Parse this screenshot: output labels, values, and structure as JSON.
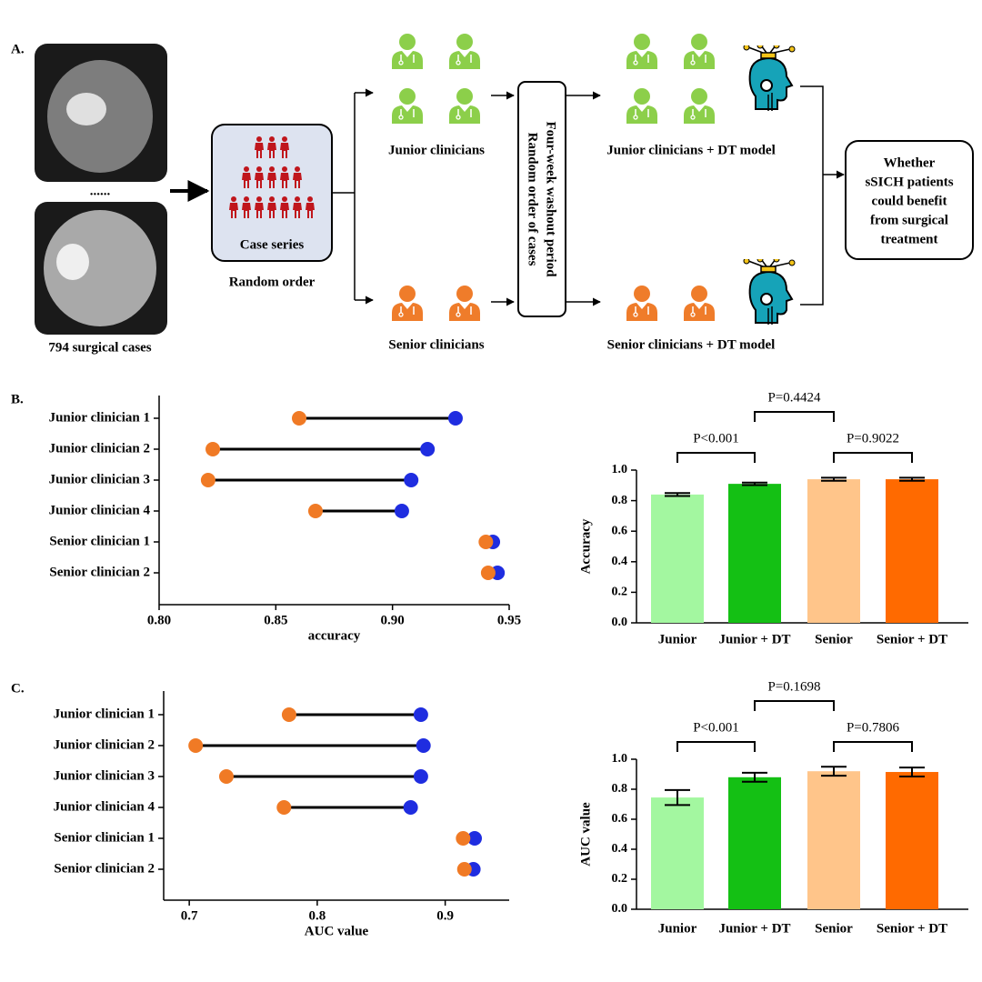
{
  "panel_labels": [
    "A.",
    "B.",
    "C."
  ],
  "diagram": {
    "scans_label": "794 surgical cases",
    "ellipsis": "......",
    "case_box": "Case series",
    "random_order": "Random order",
    "junior": "Junior clinicians",
    "senior": "Senior clinicians",
    "washout": [
      "Four-week washout period",
      "Random order of cases"
    ],
    "junior_dt": "Junior clinicians + DT model",
    "senior_dt": "Senior clinicians + DT model",
    "outcome": [
      "Whether",
      "sSICH patients",
      "could benefit",
      "from surgical",
      "treatment"
    ]
  },
  "chart_data": [
    {
      "type": "dumbbell",
      "xlabel": "accuracy",
      "categories": [
        "Junior clinician 1",
        "Junior clinician 2",
        "Junior clinician 3",
        "Junior clinician 4",
        "Senior clinician 1",
        "Senior clinician 2"
      ],
      "series": [
        {
          "color": "#f07a25",
          "values": [
            0.86,
            0.823,
            0.821,
            0.867,
            0.94,
            0.941
          ]
        },
        {
          "color": "#1f2de0",
          "values": [
            0.927,
            0.915,
            0.908,
            0.904,
            0.943,
            0.945
          ]
        }
      ],
      "xlim": [
        0.8,
        0.95
      ],
      "xticks": [
        {
          "value": 0.8,
          "label": "0.80"
        },
        0.85,
        {
          "value": 0.9,
          "label": "0.90"
        },
        0.95
      ]
    },
    {
      "type": "bar",
      "ylabel": "Accuracy",
      "categories": [
        "Junior",
        "Junior + DT",
        "Senior",
        "Senior + DT"
      ],
      "values": [
        0.84,
        0.91,
        0.94,
        0.94
      ],
      "errors": [
        0.01,
        0.008,
        0.01,
        0.01
      ],
      "colors": [
        "#a3f7a0",
        "#14c014",
        "#ffc58a",
        "#ff6a00"
      ],
      "comparisons": [
        "P<0.001",
        "P=0.9022",
        "P=0.4424"
      ],
      "ylim": [
        0,
        1
      ],
      "yticks": [
        {
          "value": 0,
          "label": "0.0"
        },
        0.2,
        0.4,
        0.6,
        0.8,
        {
          "value": 1,
          "label": "1.0"
        }
      ]
    },
    {
      "type": "dumbbell",
      "xlabel": "AUC value",
      "categories": [
        "Junior clinician 1",
        "Junior clinician 2",
        "Junior clinician 3",
        "Junior clinician 4",
        "Senior clinician 1",
        "Senior clinician 2"
      ],
      "series": [
        {
          "color": "#f07a25",
          "values": [
            0.778,
            0.705,
            0.729,
            0.774,
            0.914,
            0.915
          ]
        },
        {
          "color": "#1f2de0",
          "values": [
            0.881,
            0.883,
            0.881,
            0.873,
            0.923,
            0.922
          ]
        }
      ],
      "xlim": [
        0.68,
        0.95
      ],
      "xticks": [
        0.7,
        0.8,
        0.9
      ]
    },
    {
      "type": "bar",
      "ylabel": "AUC value",
      "categories": [
        "Junior",
        "Junior + DT",
        "Senior",
        "Senior + DT"
      ],
      "values": [
        0.745,
        0.88,
        0.92,
        0.915
      ],
      "errors": [
        0.05,
        0.03,
        0.03,
        0.03
      ],
      "colors": [
        "#a3f7a0",
        "#14c014",
        "#ffc58a",
        "#ff6a00"
      ],
      "comparisons": [
        "P<0.001",
        "P=0.7806",
        "P=0.1698"
      ],
      "ylim": [
        0,
        1
      ],
      "yticks": [
        {
          "value": 0,
          "label": "0.0"
        },
        0.2,
        0.4,
        0.6,
        0.8,
        {
          "value": 1,
          "label": "1.0"
        }
      ]
    }
  ]
}
